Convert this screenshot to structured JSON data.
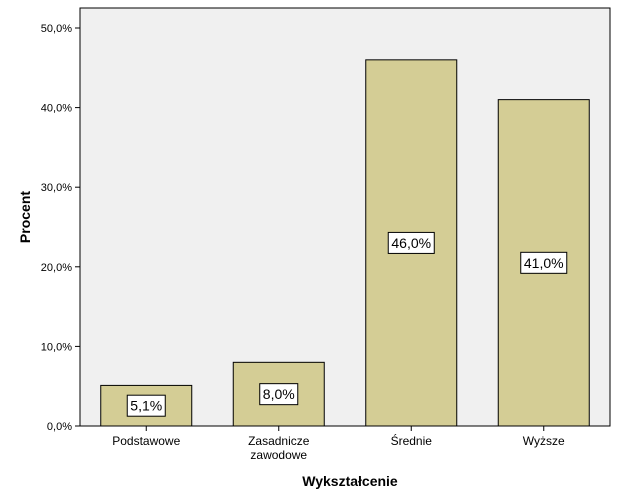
{
  "chart_data": {
    "type": "bar",
    "title": "",
    "xlabel": "Wykształcenie",
    "ylabel": "Procent",
    "categories": [
      [
        "Podstawowe"
      ],
      [
        "Zasadnicze",
        "zawodowe"
      ],
      [
        "Średnie"
      ],
      [
        "Wyższe"
      ]
    ],
    "values": [
      5.1,
      8.0,
      46.0,
      41.0
    ],
    "data_labels": [
      "5,1%",
      "8,0%",
      "46,0%",
      "41,0%"
    ],
    "ylim": [
      0,
      50
    ],
    "yticks": [
      0,
      10,
      20,
      30,
      40,
      50
    ],
    "ytick_labels": [
      "0,0%",
      "10,0%",
      "20,0%",
      "30,0%",
      "40,0%",
      "50,0%"
    ],
    "grid": false,
    "legend": "none",
    "colors": {
      "bar_fill": "#d4cd95",
      "bar_stroke": "#000000",
      "plot_background": "#f0f0f0",
      "page_background": "#ffffff"
    }
  }
}
